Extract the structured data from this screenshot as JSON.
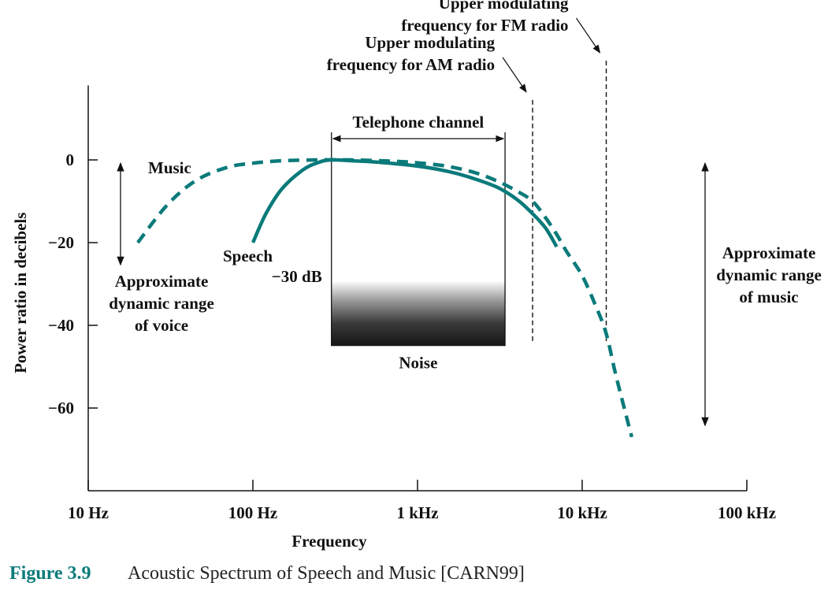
{
  "chart_data": {
    "type": "line",
    "xlabel": "Frequency",
    "ylabel": "Power ratio in decibels",
    "x_scale": "log",
    "xlim": [
      10,
      100000
    ],
    "ylim": [
      -80,
      18
    ],
    "x_ticks": [
      {
        "value": 10,
        "label": "10 Hz"
      },
      {
        "value": 100,
        "label": "100 Hz"
      },
      {
        "value": 1000,
        "label": "1 kHz"
      },
      {
        "value": 10000,
        "label": "10 kHz"
      },
      {
        "value": 100000,
        "label": "100 kHz"
      }
    ],
    "y_ticks": [
      {
        "value": 0,
        "label": "0"
      },
      {
        "value": -20,
        "label": "−20"
      },
      {
        "value": -40,
        "label": "−40"
      },
      {
        "value": -60,
        "label": "−60"
      }
    ],
    "series": [
      {
        "name": "Music",
        "style": "dashed",
        "color": "#0a7a7a",
        "x": [
          20,
          30,
          45,
          70,
          100,
          150,
          250,
          400,
          700,
          1000,
          1500,
          2200,
          3000,
          4000,
          5000,
          6000,
          7000,
          8000,
          10000,
          12000,
          14000,
          16000,
          20000
        ],
        "y": [
          -20,
          -11,
          -5,
          -1.8,
          -0.8,
          -0.2,
          0,
          0,
          -0.3,
          -0.7,
          -1.5,
          -3,
          -5,
          -7.5,
          -10,
          -14,
          -18,
          -22,
          -28,
          -35,
          -42,
          -52,
          -67
        ]
      },
      {
        "name": "Speech",
        "style": "solid",
        "color": "#0a7a7a",
        "x": [
          100,
          120,
          150,
          200,
          250,
          300,
          400,
          600,
          1000,
          1500,
          2000,
          3000,
          4000,
          5000,
          6000,
          7000
        ],
        "y": [
          -20,
          -13,
          -7,
          -2.5,
          -0.6,
          0,
          -0.2,
          -0.6,
          -1.5,
          -2.7,
          -4,
          -6.5,
          -9.5,
          -13,
          -16.5,
          -21
        ]
      }
    ],
    "telephone_channel": {
      "label": "Telephone channel",
      "x_range": [
        300,
        3400
      ]
    },
    "noise": {
      "label": "Noise",
      "level_label": "−30 dB",
      "x_range": [
        300,
        3400
      ],
      "y_range": [
        -30,
        -45
      ]
    },
    "reference_lines": [
      {
        "label_lines": [
          "Upper modulating",
          "frequency for AM radio"
        ],
        "x": 5000,
        "y_range": [
          -44,
          14.5
        ]
      },
      {
        "label_lines": [
          "Upper modulating",
          "frequency for FM radio"
        ],
        "x": 14000,
        "y_range": [
          -44,
          24
        ]
      }
    ],
    "annotations": {
      "music_label": "Music",
      "speech_label": "Speech",
      "voice_range": {
        "label_lines": [
          "Approximate",
          "dynamic range",
          "of voice"
        ],
        "x": 15,
        "y_range": [
          0,
          -25
        ]
      },
      "music_range": {
        "label_lines": [
          "Approximate",
          "dynamic range",
          "of music"
        ],
        "x": 57000,
        "y_range": [
          0,
          -65
        ]
      }
    }
  },
  "caption": {
    "number": "Figure 3.9",
    "text": "Acoustic Spectrum of Speech and Music [CARN99]"
  },
  "colors": {
    "curve": "#0a7a7a",
    "axis": "#111111",
    "caption_accent": "#0a7a7a"
  }
}
